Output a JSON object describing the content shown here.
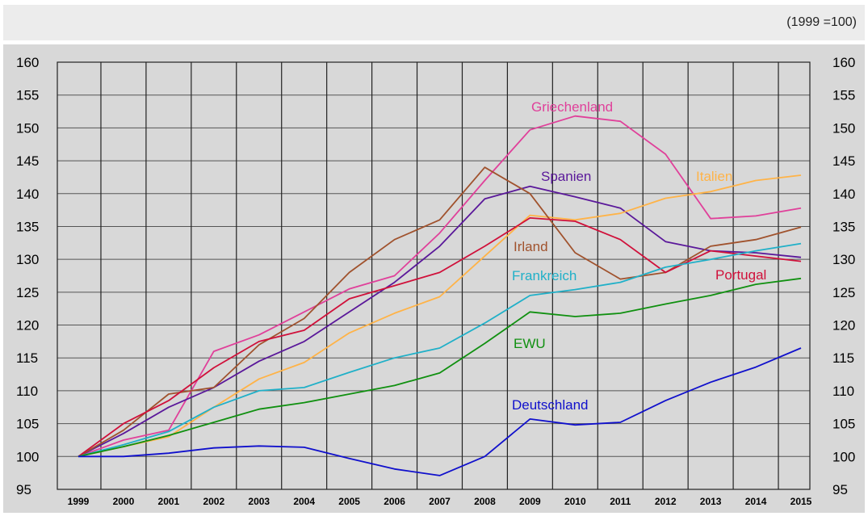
{
  "note": "(1999 =100)",
  "chart_data": {
    "type": "line",
    "title": "",
    "xlabel": "",
    "ylabel": "",
    "ylim": [
      95,
      160
    ],
    "yticks": [
      95,
      100,
      105,
      110,
      115,
      120,
      125,
      130,
      135,
      140,
      145,
      150,
      155,
      160
    ],
    "x": [
      "1999",
      "2000",
      "2001",
      "2002",
      "2003",
      "2004",
      "2005",
      "2006",
      "2007",
      "2008",
      "2009",
      "2010",
      "2011",
      "2012",
      "2013",
      "2014",
      "2015"
    ],
    "grid": true,
    "series": [
      {
        "name": "Griechenland",
        "color": "#e0409a",
        "values": [
          100,
          102.5,
          104,
          116,
          118.5,
          122,
          125.5,
          127.5,
          134,
          142,
          149.7,
          151.8,
          151,
          146,
          136.2,
          136.6,
          137.8
        ]
      },
      {
        "name": "Spanien",
        "color": "#5a189a",
        "values": [
          100,
          103.5,
          107.5,
          110.5,
          114.5,
          117.5,
          122,
          126.5,
          132,
          139.2,
          141.1,
          139.5,
          137.8,
          132.7,
          131.3,
          131,
          130.3
        ]
      },
      {
        "name": "Italien",
        "color": "#ffb347",
        "values": [
          100,
          101.5,
          103,
          107.5,
          111.8,
          114.3,
          118.8,
          121.8,
          124.3,
          130.5,
          136.7,
          136,
          137,
          139.3,
          140.3,
          142,
          142.8
        ]
      },
      {
        "name": "Irland",
        "color": "#a0522d",
        "values": [
          100,
          104,
          109.5,
          110.5,
          117,
          121,
          128,
          133,
          136,
          144,
          140,
          131,
          127,
          128,
          132,
          133,
          134.9
        ]
      },
      {
        "name": "Portugal",
        "color": "#d0103a",
        "values": [
          100,
          105,
          108.5,
          113.5,
          117.5,
          119.2,
          124,
          126,
          128,
          132,
          136.3,
          135.8,
          133,
          128,
          131.3,
          130.5,
          129.7
        ]
      },
      {
        "name": "Frankreich",
        "color": "#20b0c8",
        "values": [
          100,
          101.8,
          103.8,
          107.5,
          110,
          110.5,
          112.8,
          115,
          116.5,
          120.3,
          124.5,
          125.4,
          126.5,
          128.8,
          130,
          131.3,
          132.4
        ]
      },
      {
        "name": "EWU",
        "color": "#109010",
        "values": [
          100,
          101.5,
          103.2,
          105.2,
          107.2,
          108.2,
          109.5,
          110.8,
          112.7,
          117.2,
          122,
          121.3,
          121.8,
          123.2,
          124.5,
          126.2,
          127.1
        ]
      },
      {
        "name": "Deutschland",
        "color": "#1010cc",
        "values": [
          100,
          100,
          100.5,
          101.3,
          101.6,
          101.4,
          99.7,
          98.1,
          97.1,
          100,
          105.7,
          104.8,
          105.2,
          108.5,
          111.3,
          113.6,
          116.5
        ]
      }
    ]
  }
}
